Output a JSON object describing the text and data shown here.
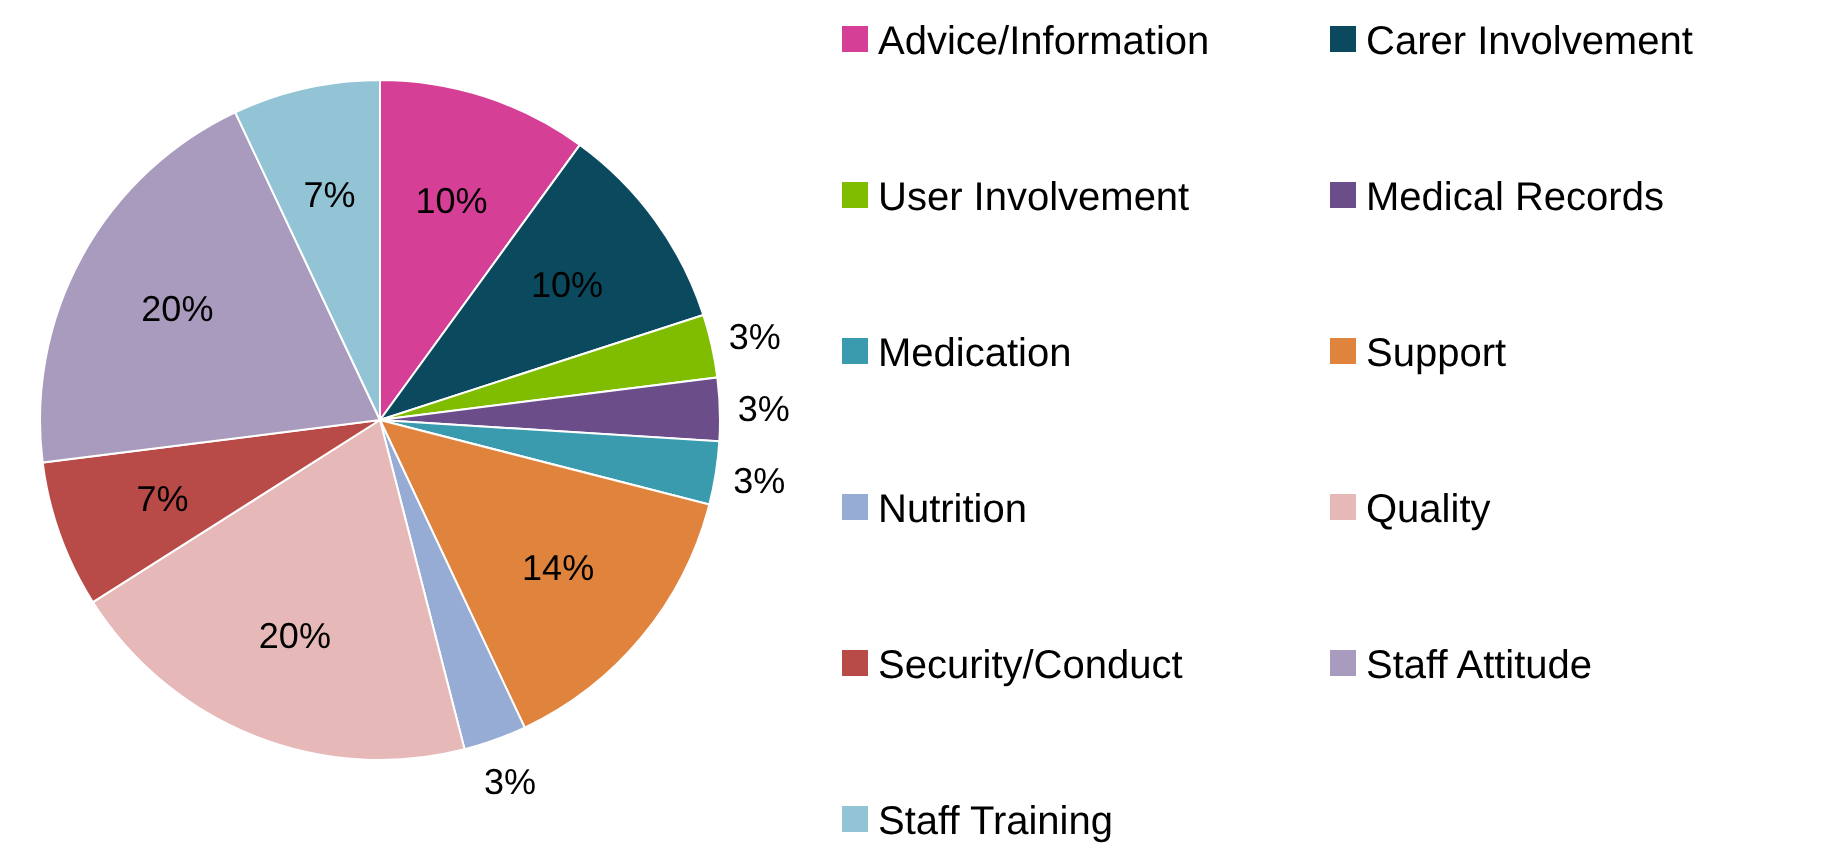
{
  "chart_data": {
    "type": "pie",
    "categories": [
      "Advice/Information",
      "Carer Involvement",
      "User Involvement",
      "Medical Records",
      "Medication",
      "Support",
      "Nutrition",
      "Quality",
      "Security/Conduct",
      "Staff Attitude",
      "Staff Training"
    ],
    "values": [
      10,
      10,
      3,
      3,
      3,
      14,
      3,
      20,
      7,
      20,
      7
    ],
    "value_labels": [
      "10%",
      "10%",
      "3%",
      "3%",
      "3%",
      "14%",
      "3%",
      "20%",
      "7%",
      "20%",
      "7%"
    ],
    "colors": [
      "#d63f96",
      "#0b4a5e",
      "#80bc00",
      "#6b4d8a",
      "#3a9aae",
      "#e0833c",
      "#97acd4",
      "#e6b8b8",
      "#b84a48",
      "#a99bbd",
      "#92c4d6"
    ],
    "legend": "right"
  }
}
